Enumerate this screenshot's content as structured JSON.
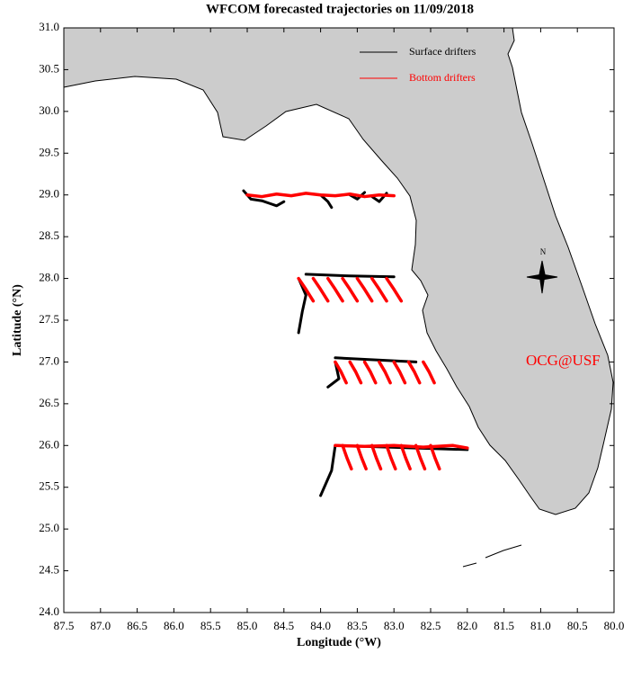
{
  "chart_data": {
    "type": "map",
    "title": "WFCOM forecasted trajectories on 11/09/2018",
    "x_label": "Longitude (°W)",
    "y_label": "Latitude (°N)",
    "xlim": [
      87.5,
      80.0
    ],
    "ylim": [
      24.0,
      31.0
    ],
    "xticks": [
      87.5,
      {
        "value": 87,
        "label": "87.0"
      },
      86.5,
      {
        "value": 86,
        "label": "86.0"
      },
      85.5,
      {
        "value": 85,
        "label": "85.0"
      },
      84.5,
      {
        "value": 84,
        "label": "84.0"
      },
      83.5,
      {
        "value": 83,
        "label": "83.0"
      },
      82.5,
      {
        "value": 82,
        "label": "82.0"
      },
      81.5,
      {
        "value": 81,
        "label": "81.0"
      },
      80.5,
      {
        "value": 80,
        "label": "80.0"
      }
    ],
    "yticks": [
      {
        "value": 24,
        "label": "24.0"
      },
      24.5,
      {
        "value": 25,
        "label": "25.0"
      },
      25.5,
      {
        "value": 26,
        "label": "26.0"
      },
      26.5,
      {
        "value": 27,
        "label": "27.0"
      },
      27.5,
      {
        "value": 28,
        "label": "28.0"
      },
      28.5,
      {
        "value": 29,
        "label": "29.0"
      },
      29.5,
      {
        "value": 30,
        "label": "30.0"
      },
      30.5,
      {
        "value": 31,
        "label": "31.0"
      }
    ],
    "annotations": {
      "credit": "OCG@USF",
      "north": "N"
    },
    "series": [
      {
        "name": "Surface drifters",
        "color": "#000000",
        "tracks": [
          {
            "x": [
              85.05,
              84.95,
              84.8,
              84.7,
              84.6,
              84.5
            ],
            "y": [
              29.05,
              28.95,
              28.93,
              28.9,
              28.87,
              28.92
            ]
          },
          {
            "x": [
              84.0,
              83.9,
              83.85
            ],
            "y": [
              29.0,
              28.92,
              28.85
            ]
          },
          {
            "x": [
              83.6,
              83.5,
              83.4
            ],
            "y": [
              29.0,
              28.95,
              29.03
            ]
          },
          {
            "x": [
              83.3,
              83.2,
              83.1
            ],
            "y": [
              28.98,
              28.92,
              29.02
            ]
          },
          {
            "x": [
              84.2,
              83.6,
              83.0
            ],
            "y": [
              28.05,
              28.03,
              28.02
            ]
          },
          {
            "x": [
              84.3,
              84.2,
              84.25,
              84.3
            ],
            "y": [
              28.0,
              27.8,
              27.6,
              27.35
            ]
          },
          {
            "x": [
              83.8,
              82.7
            ],
            "y": [
              27.05,
              27.0
            ]
          },
          {
            "x": [
              83.8,
              83.75,
              83.9
            ],
            "y": [
              27.0,
              26.8,
              26.7
            ]
          },
          {
            "x": [
              83.8,
              82.0
            ],
            "y": [
              26.0,
              25.95
            ]
          },
          {
            "x": [
              83.8,
              83.85,
              84.0
            ],
            "y": [
              26.0,
              25.7,
              25.4
            ]
          }
        ]
      },
      {
        "name": "Bottom drifters",
        "color": "#ff0000",
        "tracks": [
          {
            "x": [
              85.0,
              84.8,
              84.6,
              84.4,
              84.2,
              84.0,
              83.8,
              83.6,
              83.4,
              83.2,
              83.0
            ],
            "y": [
              29.0,
              28.98,
              29.01,
              28.99,
              29.02,
              29.0,
              28.99,
              29.01,
              28.98,
              29.0,
              28.99
            ]
          },
          {
            "x": [
              84.3,
              84.2,
              84.1
            ],
            "y": [
              28.0,
              27.87,
              27.73
            ]
          },
          {
            "x": [
              84.1,
              84.0,
              83.9
            ],
            "y": [
              28.0,
              27.87,
              27.73
            ]
          },
          {
            "x": [
              83.9,
              83.8,
              83.7
            ],
            "y": [
              28.0,
              27.87,
              27.73
            ]
          },
          {
            "x": [
              83.7,
              83.6,
              83.5
            ],
            "y": [
              28.0,
              27.87,
              27.73
            ]
          },
          {
            "x": [
              83.5,
              83.4,
              83.3
            ],
            "y": [
              28.0,
              27.87,
              27.73
            ]
          },
          {
            "x": [
              83.3,
              83.2,
              83.1
            ],
            "y": [
              28.0,
              27.87,
              27.73
            ]
          },
          {
            "x": [
              83.1,
              83.0,
              82.9
            ],
            "y": [
              28.0,
              27.87,
              27.73
            ]
          },
          {
            "x": [
              83.8,
              83.72,
              83.65
            ],
            "y": [
              27.0,
              26.88,
              26.75
            ]
          },
          {
            "x": [
              83.6,
              83.52,
              83.45
            ],
            "y": [
              27.0,
              26.88,
              26.75
            ]
          },
          {
            "x": [
              83.4,
              83.32,
              83.25
            ],
            "y": [
              27.0,
              26.88,
              26.75
            ]
          },
          {
            "x": [
              83.2,
              83.12,
              83.05
            ],
            "y": [
              27.0,
              26.88,
              26.75
            ]
          },
          {
            "x": [
              83.0,
              82.92,
              82.85
            ],
            "y": [
              27.0,
              26.88,
              26.75
            ]
          },
          {
            "x": [
              82.8,
              82.72,
              82.65
            ],
            "y": [
              27.0,
              26.88,
              26.75
            ]
          },
          {
            "x": [
              82.6,
              82.52,
              82.45
            ],
            "y": [
              27.0,
              26.88,
              26.75
            ]
          },
          {
            "x": [
              83.8,
              83.4,
              83.0,
              82.6,
              82.2,
              82.0
            ],
            "y": [
              26.0,
              25.99,
              26.0,
              25.98,
              26.0,
              25.97
            ]
          },
          {
            "x": [
              83.7,
              83.64,
              83.58
            ],
            "y": [
              26.0,
              25.85,
              25.72
            ]
          },
          {
            "x": [
              83.5,
              83.44,
              83.38
            ],
            "y": [
              26.0,
              25.85,
              25.72
            ]
          },
          {
            "x": [
              83.3,
              83.24,
              83.18
            ],
            "y": [
              26.0,
              25.85,
              25.72
            ]
          },
          {
            "x": [
              83.1,
              83.04,
              82.98
            ],
            "y": [
              26.0,
              25.85,
              25.72
            ]
          },
          {
            "x": [
              82.9,
              82.84,
              82.78
            ],
            "y": [
              26.0,
              25.85,
              25.72
            ]
          },
          {
            "x": [
              82.7,
              82.64,
              82.58
            ],
            "y": [
              26.0,
              25.85,
              25.72
            ]
          },
          {
            "x": [
              82.5,
              82.44,
              82.38
            ],
            "y": [
              26.0,
              25.85,
              25.72
            ]
          }
        ]
      }
    ]
  }
}
